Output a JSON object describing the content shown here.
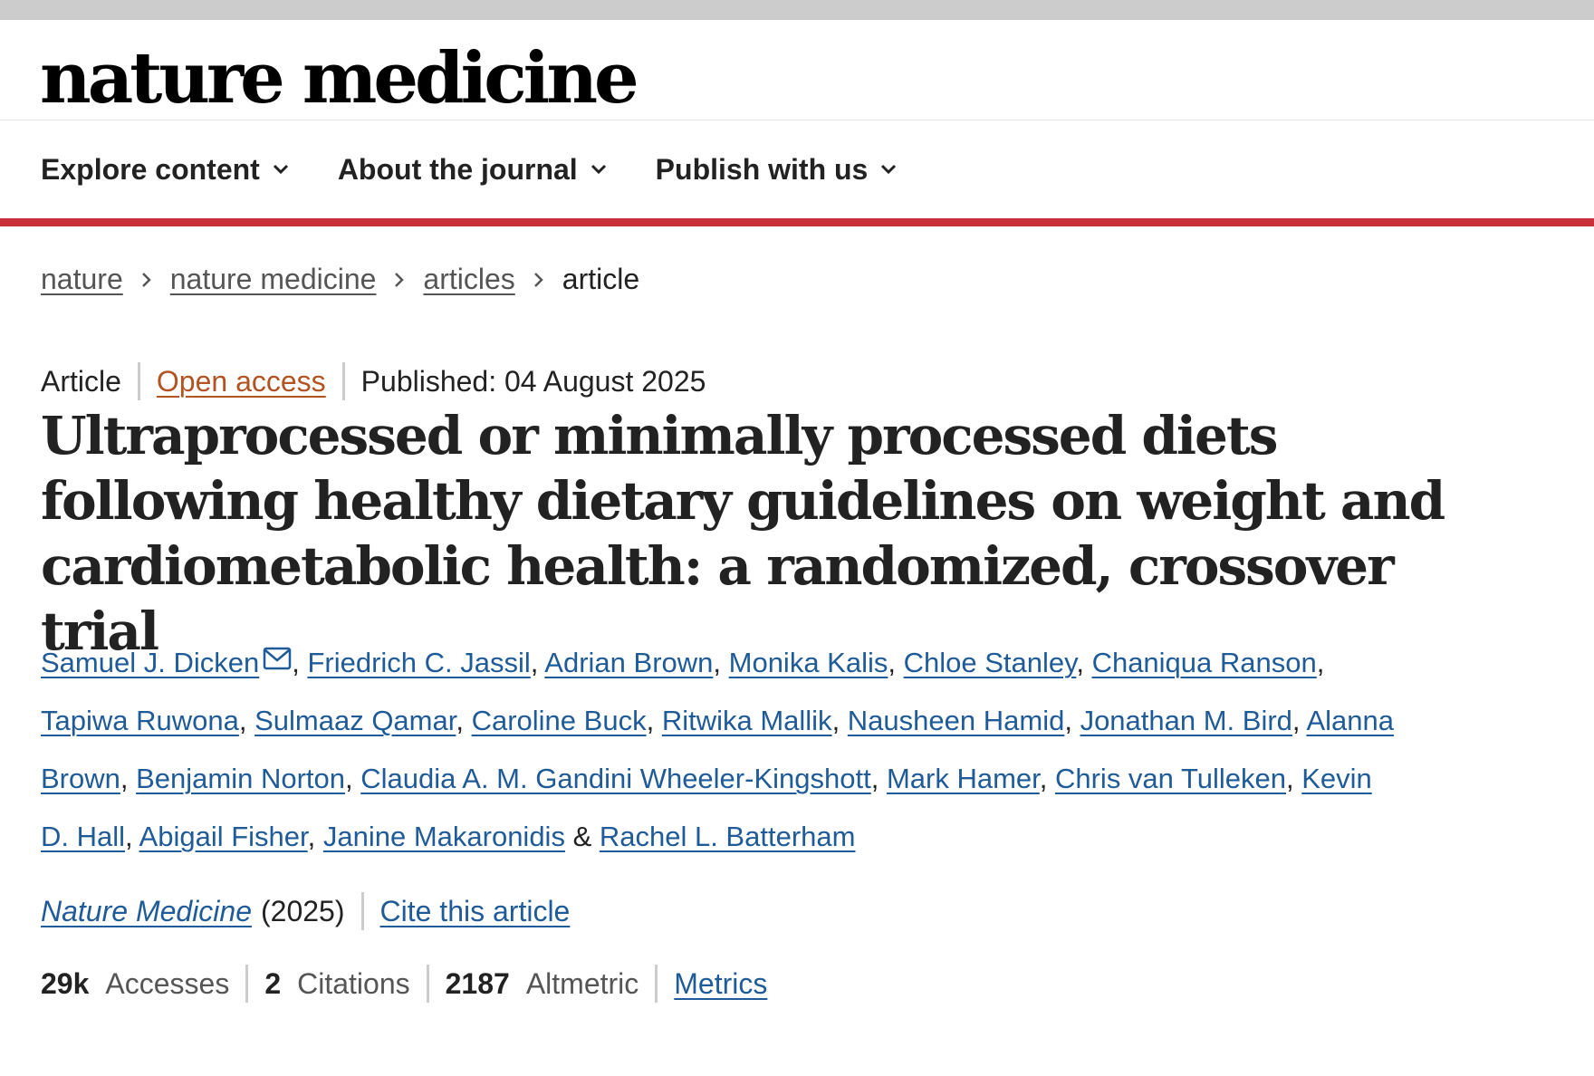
{
  "header": {
    "logo_text": "nature medicine"
  },
  "nav": {
    "items": [
      {
        "label": "Explore content"
      },
      {
        "label": "About the journal"
      },
      {
        "label": "Publish with us"
      }
    ],
    "accent_color": "#c8313a"
  },
  "breadcrumb": {
    "items": [
      "nature",
      "nature medicine",
      "articles"
    ],
    "current": "article"
  },
  "article": {
    "type": "Article",
    "access": "Open access",
    "published": "Published: 04 August 2025",
    "title": "Ultraprocessed or minimally processed diets following healthy dietary guidelines on weight and cardiometabolic health: a randomized, crossover trial",
    "authors": [
      "Samuel J. Dicken",
      "Friedrich C. Jassil",
      "Adrian Brown",
      "Monika Kalis",
      "Chloe Stanley",
      "Chaniqua Ranson",
      "Tapiwa Ruwona",
      "Sulmaaz Qamar",
      "Caroline Buck",
      "Ritwika Mallik",
      "Nausheen Hamid",
      "Jonathan M. Bird",
      "Alanna Brown",
      "Benjamin Norton",
      "Claudia A. M. Gandini Wheeler-Kingshott",
      "Mark Hamer",
      "Chris van Tulleken",
      "Kevin D. Hall",
      "Abigail Fisher",
      "Janine Makaronidis",
      "Rachel L. Batterham"
    ],
    "corresponding_icon": "mail-icon",
    "journal": "Nature Medicine",
    "year": "(2025)",
    "cite_label": "Cite this article"
  },
  "metrics": {
    "accesses_value": "29k",
    "accesses_label": "Accesses",
    "citations_value": "2",
    "citations_label": "Citations",
    "altmetric_value": "2187",
    "altmetric_label": "Altmetric",
    "metrics_link": "Metrics"
  },
  "colors": {
    "link": "#1f5b99",
    "open_access": "#b35322"
  }
}
